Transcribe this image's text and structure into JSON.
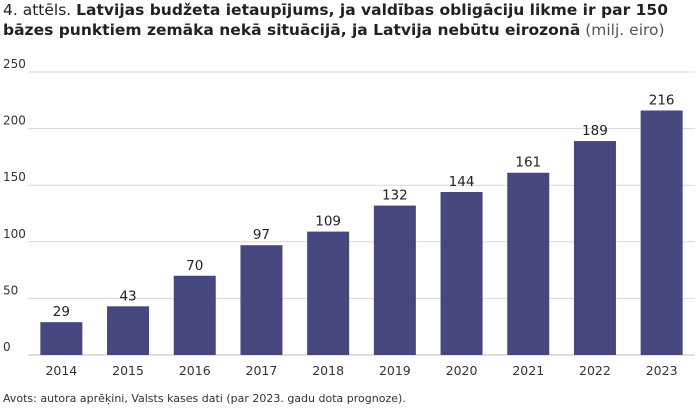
{
  "title": {
    "prefix": "4. attēls.",
    "main": "Latvijas budžeta ietaupījums, ja valdības obligāciju likme ir par 150 bāzes punktiem zemāka nekā situācijā, ja Latvija nebūtu eirozonā",
    "unit": "(milj. eiro)"
  },
  "source": "Avots: autora aprēķini, Valsts kases dati (par 2023. gadu dota prognoze).",
  "colors": {
    "bar": "#45477e",
    "grid": "#d9d9d9",
    "text": "#222222"
  },
  "chart_data": {
    "type": "bar",
    "title": "Latvijas budžeta ietaupījums, ja valdības obligāciju likme ir par 150 bāzes punktiem zemāka nekā situācijā, ja Latvija nebūtu eirozonā",
    "xlabel": "",
    "ylabel": "",
    "categories": [
      "2014",
      "2015",
      "2016",
      "2017",
      "2018",
      "2019",
      "2020",
      "2021",
      "2022",
      "2023"
    ],
    "values": [
      29,
      43,
      70,
      97,
      109,
      132,
      144,
      161,
      189,
      216
    ],
    "data_labels": [
      "29",
      "43",
      "70",
      "97",
      "109",
      "132",
      "144",
      "161",
      "189",
      "216"
    ],
    "ylim": [
      0,
      250
    ],
    "yticks": [
      0,
      50,
      100,
      150,
      200,
      250
    ],
    "ytick_labels": [
      "0",
      "50",
      "100",
      "150",
      "200",
      "250"
    ],
    "grid": true,
    "legend": "none"
  }
}
